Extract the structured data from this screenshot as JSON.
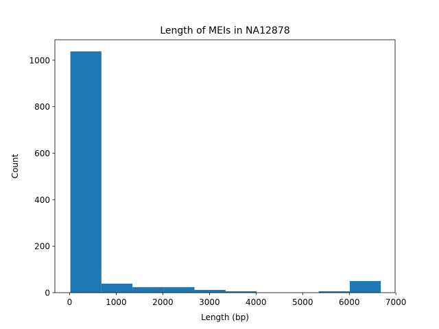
{
  "chart_data": {
    "type": "bar",
    "title": "Length of MEIs in NA12878",
    "xlabel": "Length (bp)",
    "ylabel": "Count",
    "bar_color": "#1f77b4",
    "xlim": [
      -316,
      6983
    ],
    "ylim": [
      0,
      1088
    ],
    "xticks": [
      0,
      1000,
      2000,
      3000,
      4000,
      5000,
      6000,
      7000
    ],
    "yticks": [
      0,
      200,
      400,
      600,
      800,
      1000
    ],
    "bins": [
      {
        "x0": 16,
        "x1": 682,
        "value": 1038
      },
      {
        "x0": 682,
        "x1": 1348,
        "value": 39
      },
      {
        "x0": 1348,
        "x1": 2014,
        "value": 24
      },
      {
        "x0": 2014,
        "x1": 2680,
        "value": 24
      },
      {
        "x0": 2680,
        "x1": 3346,
        "value": 12
      },
      {
        "x0": 3346,
        "x1": 4012,
        "value": 6
      },
      {
        "x0": 4012,
        "x1": 4678,
        "value": 0
      },
      {
        "x0": 4678,
        "x1": 5344,
        "value": 0
      },
      {
        "x0": 5344,
        "x1": 6010,
        "value": 6
      },
      {
        "x0": 6010,
        "x1": 6676,
        "value": 50
      }
    ]
  }
}
